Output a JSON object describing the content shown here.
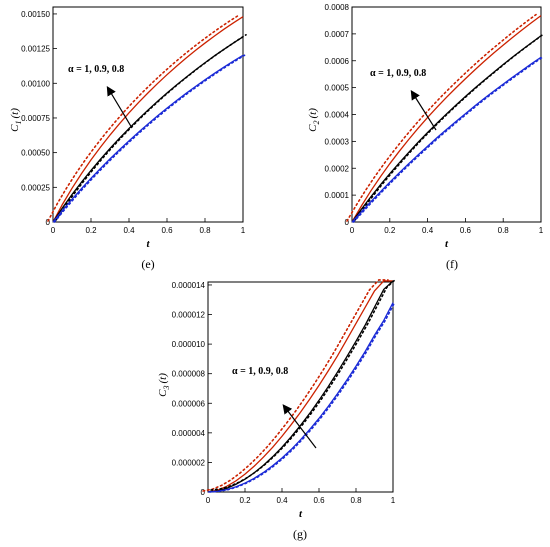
{
  "chart_data": [
    {
      "type": "line",
      "panel_label": "(e)",
      "ylabel": "C1(t)",
      "ylabel_main": "C",
      "ylabel_sub": "1",
      "ylabel_arg": "(t)",
      "xlabel": "t",
      "xlim": [
        0,
        1
      ],
      "ylim": [
        0,
        0.00155
      ],
      "x_ticks": [
        0,
        0.2,
        0.4,
        0.6,
        0.8,
        1
      ],
      "x_tick_labels": [
        "0",
        "0.2",
        "0.4",
        "0.6",
        "0.8",
        "1"
      ],
      "y_ticks": [
        0,
        0.00025,
        0.0005,
        0.00075,
        0.001,
        0.00125,
        0.0015
      ],
      "y_tick_labels": [
        "0",
        "0.00025",
        "0.00050",
        "0.00075",
        "0.00100",
        "0.00125",
        "0.00150"
      ],
      "annotation": "α = 1, 0.9, 0.8",
      "x": [
        0,
        0.05,
        0.1,
        0.15,
        0.2,
        0.25,
        0.3,
        0.35,
        0.4,
        0.45,
        0.5,
        0.55,
        0.6,
        0.65,
        0.7,
        0.75,
        0.8,
        0.85,
        0.9,
        0.95,
        1
      ],
      "series": [
        {
          "color": "#cc2200",
          "style": "solid",
          "values": [
            0,
            0.000128,
            0.000243,
            0.000349,
            0.000448,
            0.00054,
            0.000627,
            0.000709,
            0.000787,
            0.000861,
            0.000931,
            0.000998,
            0.001062,
            0.001123,
            0.001181,
            0.001237,
            0.00129,
            0.001341,
            0.00139,
            0.001436,
            0.00148
          ]
        },
        {
          "color": "#cc2200",
          "style": "dotted",
          "values": [
            0,
            0.000128,
            0.000243,
            0.000349,
            0.000448,
            0.00054,
            0.000627,
            0.000709,
            0.000787,
            0.000861,
            0.000931,
            0.000998,
            0.001062,
            0.001123,
            0.001181,
            0.001237,
            0.00129,
            0.001341,
            0.00139,
            0.001436,
            0.00148
          ]
        },
        {
          "color": "#000000",
          "style": "solid",
          "values": [
            0,
            0.000103,
            0.000198,
            0.000287,
            0.000372,
            0.000453,
            0.00053,
            0.000604,
            0.000674,
            0.000742,
            0.000807,
            0.00087,
            0.00093,
            0.000988,
            0.001043,
            0.001097,
            0.001148,
            0.001198,
            0.001245,
            0.001291,
            0.001335
          ]
        },
        {
          "color": "#000000",
          "style": "dotted",
          "values": [
            0,
            0.000103,
            0.000198,
            0.000287,
            0.000372,
            0.000453,
            0.00053,
            0.000604,
            0.000674,
            0.000742,
            0.000807,
            0.00087,
            0.00093,
            0.000988,
            0.001043,
            0.001097,
            0.001148,
            0.001198,
            0.001245,
            0.001291,
            0.001335
          ]
        },
        {
          "color": "#1a2ad6",
          "style": "solid",
          "values": [
            0,
            8.4e-05,
            0.000164,
            0.000241,
            0.000315,
            0.000386,
            0.000455,
            0.000521,
            0.000585,
            0.000647,
            0.000707,
            0.000765,
            0.000821,
            0.000875,
            0.000927,
            0.000977,
            0.001025,
            0.001072,
            0.001117,
            0.00116,
            0.001202
          ]
        },
        {
          "color": "#1a2ad6",
          "style": "dotted",
          "values": [
            0,
            8.4e-05,
            0.000164,
            0.000241,
            0.000315,
            0.000386,
            0.000455,
            0.000521,
            0.000585,
            0.000647,
            0.000707,
            0.000765,
            0.000821,
            0.000875,
            0.000927,
            0.000977,
            0.001025,
            0.001072,
            0.001117,
            0.00116,
            0.001202
          ]
        }
      ]
    },
    {
      "type": "line",
      "panel_label": "(f)",
      "ylabel": "C2(t)",
      "ylabel_main": "C",
      "ylabel_sub": "2",
      "ylabel_arg": "(t)",
      "xlabel": "t",
      "xlim": [
        0,
        1
      ],
      "ylim": [
        0,
        0.0008
      ],
      "x_ticks": [
        0,
        0.2,
        0.4,
        0.6,
        0.8,
        1
      ],
      "x_tick_labels": [
        "0",
        "0.2",
        "0.4",
        "0.6",
        "0.8",
        "1"
      ],
      "y_ticks": [
        0,
        0.0001,
        0.0002,
        0.0003,
        0.0004,
        0.0005,
        0.0006,
        0.0007,
        0.0008
      ],
      "y_tick_labels": [
        "0",
        "0.0001",
        "0.0002",
        "0.0003",
        "0.0004",
        "0.0005",
        "0.0006",
        "0.0007",
        "0.0008"
      ],
      "annotation": "α = 1, 0.9, 0.8",
      "x": [
        0,
        0.05,
        0.1,
        0.15,
        0.2,
        0.25,
        0.3,
        0.35,
        0.4,
        0.45,
        0.5,
        0.55,
        0.6,
        0.65,
        0.7,
        0.75,
        0.8,
        0.85,
        0.9,
        0.95,
        1
      ],
      "series": [
        {
          "color": "#cc2200",
          "style": "solid",
          "values": [
            0,
            6e-05,
            0.000116,
            0.000168,
            0.000217,
            0.000263,
            0.000307,
            0.000349,
            0.000389,
            0.000427,
            0.000464,
            0.000499,
            0.000533,
            0.000566,
            0.000598,
            0.000629,
            0.000658,
            0.000687,
            0.000715,
            0.000742,
            0.000768
          ]
        },
        {
          "color": "#cc2200",
          "style": "dotted",
          "values": [
            0,
            6e-05,
            0.000116,
            0.000168,
            0.000217,
            0.000263,
            0.000307,
            0.000349,
            0.000389,
            0.000427,
            0.000464,
            0.000499,
            0.000533,
            0.000566,
            0.000598,
            0.000629,
            0.000658,
            0.000687,
            0.000715,
            0.000742,
            0.000768
          ]
        },
        {
          "color": "#000000",
          "style": "solid",
          "values": [
            0,
            4.8e-05,
            9.4e-05,
            0.000138,
            0.00018,
            0.00022,
            0.000259,
            0.000297,
            0.000333,
            0.000368,
            0.000402,
            0.000435,
            0.000467,
            0.000498,
            0.000528,
            0.000557,
            0.000586,
            0.000614,
            0.000641,
            0.000667,
            0.000693
          ]
        },
        {
          "color": "#000000",
          "style": "dotted",
          "values": [
            0,
            4.8e-05,
            9.4e-05,
            0.000138,
            0.00018,
            0.00022,
            0.000259,
            0.000297,
            0.000333,
            0.000368,
            0.000402,
            0.000435,
            0.000467,
            0.000498,
            0.000528,
            0.000557,
            0.000586,
            0.000614,
            0.000641,
            0.000667,
            0.000693
          ]
        },
        {
          "color": "#1a2ad6",
          "style": "solid",
          "values": [
            0,
            3.8e-05,
            7.6e-05,
            0.000112,
            0.000148,
            0.000183,
            0.000217,
            0.00025,
            0.000282,
            0.000314,
            0.000344,
            0.000374,
            0.000403,
            0.000432,
            0.00046,
            0.000487,
            0.000513,
            0.000539,
            0.000564,
            0.000589,
            0.000613
          ]
        },
        {
          "color": "#1a2ad6",
          "style": "dotted",
          "values": [
            0,
            3.8e-05,
            7.6e-05,
            0.000112,
            0.000148,
            0.000183,
            0.000217,
            0.00025,
            0.000282,
            0.000314,
            0.000344,
            0.000374,
            0.000403,
            0.000432,
            0.00046,
            0.000487,
            0.000513,
            0.000539,
            0.000564,
            0.000589,
            0.000613
          ]
        }
      ]
    },
    {
      "type": "line",
      "panel_label": "(g)",
      "ylabel": "C3(t)",
      "ylabel_main": "C",
      "ylabel_sub": "3",
      "ylabel_arg": "(t)",
      "xlabel": "t",
      "xlim": [
        0,
        1
      ],
      "ylim": [
        0,
        1.42e-05
      ],
      "x_ticks": [
        0,
        0.2,
        0.4,
        0.6,
        0.8,
        1
      ],
      "x_tick_labels": [
        "0",
        "0.2",
        "0.4",
        "0.6",
        "0.8",
        "1"
      ],
      "y_ticks": [
        0,
        2e-06,
        4e-06,
        6e-06,
        8e-06,
        1e-05,
        1.2e-05,
        1.4e-05
      ],
      "y_tick_labels": [
        "0",
        "0.000002",
        "0.000004",
        "0.000006",
        "0.000008",
        "0.000010",
        "0.000012",
        "0.000014"
      ],
      "annotation": "α = 1, 0.9, 0.8",
      "x": [
        0,
        0.05,
        0.1,
        0.15,
        0.2,
        0.25,
        0.3,
        0.35,
        0.4,
        0.45,
        0.5,
        0.55,
        0.6,
        0.65,
        0.7,
        0.75,
        0.8,
        0.85,
        0.9,
        0.95,
        1
      ],
      "series": [
        {
          "color": "#cc2200",
          "style": "solid",
          "values": [
            0,
            1.18e-07,
            3.76e-07,
            7.44e-07,
            1.21e-06,
            1.75e-06,
            2.36e-06,
            3.03e-06,
            3.77e-06,
            4.56e-06,
            5.39e-06,
            6.28e-06,
            7.21e-06,
            8.19e-06,
            9.21e-06,
            1.03e-05,
            1.14e-05,
            1.25e-05,
            1.36e-05,
            1.48e-05,
            1.6e-05
          ]
        },
        {
          "color": "#cc2200",
          "style": "dotted",
          "values": [
            0,
            1.18e-07,
            3.76e-07,
            7.44e-07,
            1.21e-06,
            1.75e-06,
            2.36e-06,
            3.03e-06,
            3.77e-06,
            4.56e-06,
            5.39e-06,
            6.28e-06,
            7.21e-06,
            8.19e-06,
            9.21e-06,
            1.03e-05,
            1.14e-05,
            1.25e-05,
            1.36e-05,
            1.48e-05,
            1.6e-05
          ]
        },
        {
          "color": "#000000",
          "style": "solid",
          "values": [
            0,
            7.2e-08,
            2.48e-07,
            5.16e-07,
            8.69e-07,
            1.3e-06,
            1.81e-06,
            2.39e-06,
            3.03e-06,
            3.74e-06,
            4.5e-06,
            5.32e-06,
            6.2e-06,
            7.13e-06,
            8.11e-06,
            9.14e-06,
            1.02e-05,
            1.13e-05,
            1.25e-05,
            1.37e-05,
            1.49e-05
          ]
        },
        {
          "color": "#000000",
          "style": "dotted",
          "values": [
            0,
            7.2e-08,
            2.48e-07,
            5.16e-07,
            8.69e-07,
            1.3e-06,
            1.81e-06,
            2.39e-06,
            3.03e-06,
            3.74e-06,
            4.5e-06,
            5.32e-06,
            6.2e-06,
            7.13e-06,
            8.11e-06,
            9.14e-06,
            1.02e-05,
            1.13e-05,
            1.25e-05,
            1.37e-05,
            1.49e-05
          ]
        },
        {
          "color": "#1a2ad6",
          "style": "solid",
          "values": [
            0,
            4.2e-08,
            1.58e-07,
            3.45e-07,
            6.03e-07,
            9.28e-07,
            1.32e-06,
            1.78e-06,
            2.3e-06,
            2.88e-06,
            3.53e-06,
            4.23e-06,
            4.98e-06,
            5.79e-06,
            6.65e-06,
            7.56e-06,
            8.51e-06,
            9.51e-06,
            1.06e-05,
            1.16e-05,
            1.28e-05
          ]
        },
        {
          "color": "#1a2ad6",
          "style": "dotted",
          "values": [
            0,
            4.2e-08,
            1.58e-07,
            3.45e-07,
            6.03e-07,
            9.28e-07,
            1.32e-06,
            1.78e-06,
            2.3e-06,
            2.88e-06,
            3.53e-06,
            4.23e-06,
            4.98e-06,
            5.79e-06,
            6.65e-06,
            7.56e-06,
            8.51e-06,
            9.51e-06,
            1.06e-05,
            1.16e-05,
            1.28e-05
          ]
        }
      ]
    }
  ]
}
